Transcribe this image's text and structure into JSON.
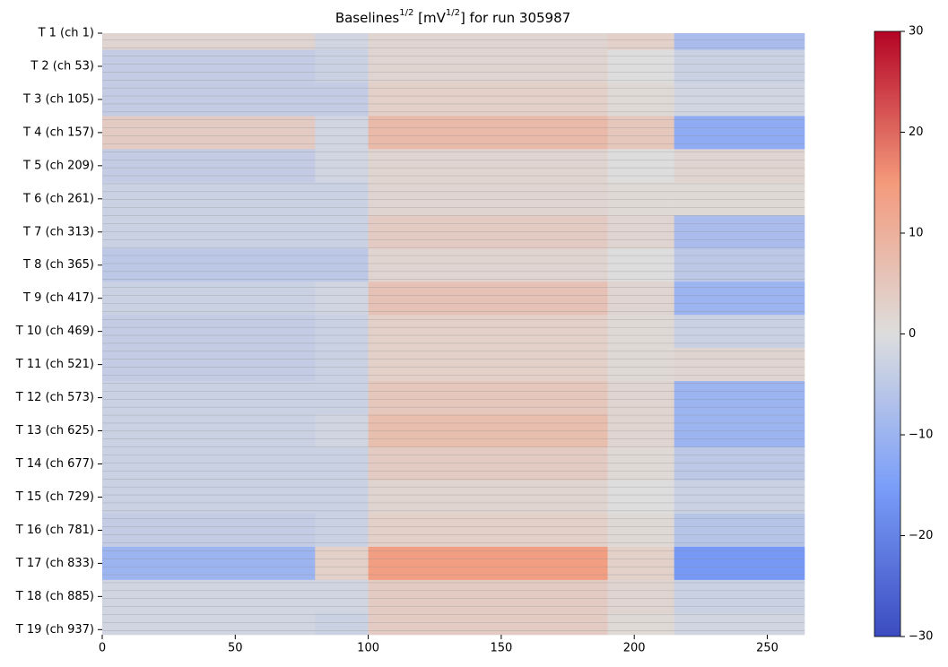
{
  "chart_data": {
    "type": "heatmap",
    "title": [
      "Baselines",
      "1/2",
      " [mV",
      "1/2",
      "] for run 305987"
    ],
    "xbins": [
      0,
      80,
      100,
      190,
      215,
      264
    ],
    "ybins": [
      0,
      26,
      78,
      130,
      182,
      234,
      286,
      338,
      390,
      442,
      494,
      546,
      598,
      650,
      702,
      754,
      806,
      858,
      910,
      944
    ],
    "z": [
      [
        2,
        -2,
        2,
        3,
        -8
      ],
      [
        -4,
        -3,
        2,
        0,
        -3
      ],
      [
        -4,
        -4,
        3,
        1,
        -2
      ],
      [
        4,
        -2,
        8,
        5,
        -12
      ],
      [
        -4,
        -2,
        2,
        0,
        2
      ],
      [
        -3,
        -3,
        2,
        1,
        1
      ],
      [
        -3,
        -3,
        4,
        2,
        -8
      ],
      [
        -5,
        -5,
        2,
        0,
        -5
      ],
      [
        -3,
        -2,
        6,
        2,
        -10
      ],
      [
        -4,
        -3,
        3,
        1,
        -3
      ],
      [
        -4,
        -3,
        3,
        1,
        2
      ],
      [
        -3,
        -3,
        5,
        2,
        -10
      ],
      [
        -3,
        -2,
        7,
        2,
        -10
      ],
      [
        -3,
        -3,
        4,
        1,
        -5
      ],
      [
        -3,
        -3,
        2,
        0,
        -3
      ],
      [
        -4,
        -3,
        3,
        1,
        -6
      ],
      [
        -10,
        3,
        14,
        3,
        -16
      ],
      [
        -2,
        -2,
        4,
        2,
        -3
      ],
      [
        -2,
        -3,
        4,
        1,
        -2
      ]
    ],
    "xlim": [
      0,
      264
    ],
    "ylim": [
      0,
      944
    ],
    "xticks": [
      0,
      50,
      100,
      150,
      200,
      250
    ],
    "yticks": [
      {
        "value": 0,
        "label": "T 1 (ch 1)"
      },
      {
        "value": 52,
        "label": "T 2 (ch 53)"
      },
      {
        "value": 104,
        "label": "T 3 (ch 105)"
      },
      {
        "value": 156,
        "label": "T 4 (ch 157)"
      },
      {
        "value": 208,
        "label": "T 5 (ch 209)"
      },
      {
        "value": 260,
        "label": "T 6 (ch 261)"
      },
      {
        "value": 312,
        "label": "T 7 (ch 313)"
      },
      {
        "value": 364,
        "label": "T 8 (ch 365)"
      },
      {
        "value": 416,
        "label": "T 9 (ch 417)"
      },
      {
        "value": 468,
        "label": "T 10 (ch 469)"
      },
      {
        "value": 520,
        "label": "T 11 (ch 521)"
      },
      {
        "value": 572,
        "label": "T 12 (ch 573)"
      },
      {
        "value": 624,
        "label": "T 13 (ch 625)"
      },
      {
        "value": 676,
        "label": "T 14 (ch 677)"
      },
      {
        "value": 728,
        "label": "T 15 (ch 729)"
      },
      {
        "value": 780,
        "label": "T 16 (ch 781)"
      },
      {
        "value": 832,
        "label": "T 17 (ch 833)"
      },
      {
        "value": 884,
        "label": "T 18 (ch 885)"
      },
      {
        "value": 936,
        "label": "T 19 (ch 937)"
      }
    ],
    "colormap": "coolwarm",
    "clim": [
      -30,
      30
    ],
    "cticks": [
      {
        "value": -30,
        "label": "−30"
      },
      {
        "value": -20,
        "label": "−20"
      },
      {
        "value": -10,
        "label": "−10"
      },
      0,
      10,
      20,
      30
    ]
  }
}
